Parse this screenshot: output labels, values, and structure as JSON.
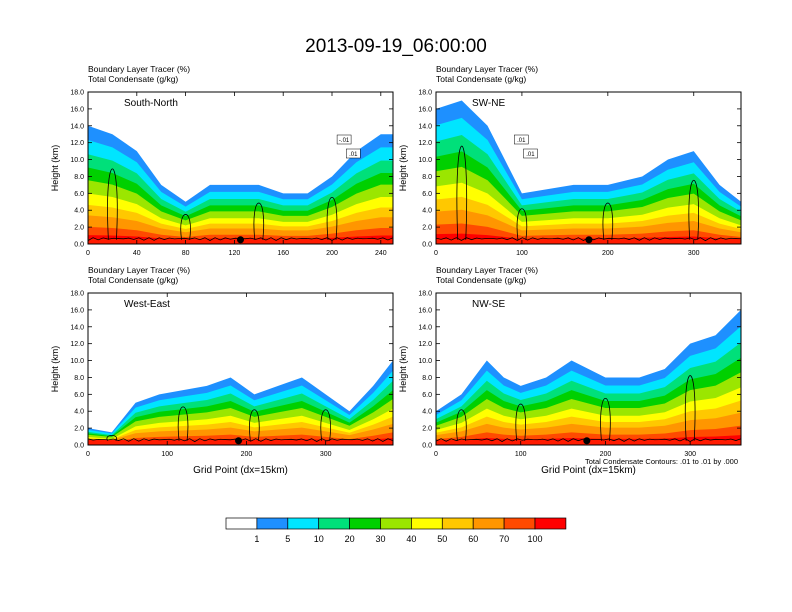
{
  "title": "2013-09-19_06:00:00",
  "panel_header_line1": "Boundary Layer Tracer   (%)",
  "panel_header_line2": "Total Condensate   (g/kg)",
  "contour_note": "Total Condensate Contours: .01 to .01 by .000",
  "colorbar": {
    "labels": [
      "1",
      "5",
      "10",
      "20",
      "30",
      "40",
      "50",
      "60",
      "70",
      "100"
    ],
    "colors": [
      "#ffffff",
      "#1e90ff",
      "#00e5ff",
      "#00e07a",
      "#00d000",
      "#9be600",
      "#ffff00",
      "#ffc800",
      "#ff9600",
      "#ff4a00",
      "#ff0000"
    ]
  },
  "chart_data": [
    {
      "type": "heatmap",
      "name": "South-North",
      "label": "South-North",
      "xlabel": "",
      "ylabel": "Height (km)",
      "xlim": [
        0,
        250
      ],
      "ylim": [
        0,
        18
      ],
      "xticks": [
        "0",
        "40",
        "80",
        "120",
        "160",
        "200",
        "240"
      ],
      "yticks": [
        "0.0",
        "2.0",
        "4.0",
        "6.0",
        "8.0",
        "10.0",
        "12.0",
        "14.0",
        "16.0",
        "18.0"
      ],
      "marker_x": 125,
      "contour_labels": [
        "-.01",
        ".01"
      ],
      "profile": {
        "x": [
          0,
          20,
          40,
          60,
          80,
          100,
          120,
          140,
          160,
          180,
          200,
          220,
          240,
          250
        ],
        "top_km": [
          14,
          13,
          11,
          7,
          5,
          7,
          7,
          7,
          6,
          6,
          8,
          11,
          13,
          13
        ]
      }
    },
    {
      "type": "heatmap",
      "name": "SW-NE",
      "label": "SW-NE",
      "xlabel": "",
      "ylabel": "Height (km)",
      "xlim": [
        0,
        355
      ],
      "ylim": [
        0,
        18
      ],
      "xticks": [
        "0",
        "100",
        "200",
        "300"
      ],
      "yticks": [
        "0.0",
        "2.0",
        "4.0",
        "6.0",
        "8.0",
        "10.0",
        "12.0",
        "14.0",
        "16.0",
        "18.0"
      ],
      "marker_x": 178,
      "contour_labels": [
        ".01",
        ".01"
      ],
      "profile": {
        "x": [
          0,
          30,
          60,
          80,
          100,
          130,
          160,
          200,
          240,
          270,
          300,
          330,
          355
        ],
        "top_km": [
          16,
          17,
          14,
          10,
          6,
          6.5,
          7,
          7,
          8,
          10,
          11,
          7,
          5
        ]
      }
    },
    {
      "type": "heatmap",
      "name": "West-East",
      "label": "West-East",
      "xlabel": "Grid Point (dx=15km)",
      "ylabel": "Height (km)",
      "xlim": [
        0,
        385
      ],
      "ylim": [
        0,
        18
      ],
      "xticks": [
        "0",
        "100",
        "200",
        "300"
      ],
      "yticks": [
        "0.0",
        "2.0",
        "4.0",
        "6.0",
        "8.0",
        "10.0",
        "12.0",
        "14.0",
        "16.0",
        "18.0"
      ],
      "marker_x": 190,
      "contour_labels": [],
      "profile": {
        "x": [
          0,
          30,
          60,
          90,
          120,
          150,
          180,
          210,
          240,
          270,
          300,
          330,
          360,
          385
        ],
        "top_km": [
          2,
          1.5,
          5,
          6,
          6.5,
          7,
          8,
          6,
          7,
          8,
          6,
          4,
          7,
          10
        ]
      }
    },
    {
      "type": "heatmap",
      "name": "NW-SE",
      "label": "NW-SE",
      "xlabel": "Grid Point (dx=15km)",
      "ylabel": "Height (km)",
      "xlim": [
        0,
        360
      ],
      "ylim": [
        0,
        18
      ],
      "xticks": [
        "0",
        "100",
        "200",
        "300"
      ],
      "yticks": [
        "0.0",
        "2.0",
        "4.0",
        "6.0",
        "8.0",
        "10.0",
        "12.0",
        "14.0",
        "16.0",
        "18.0"
      ],
      "marker_x": 178,
      "contour_labels": [],
      "profile": {
        "x": [
          0,
          30,
          60,
          80,
          100,
          130,
          160,
          200,
          240,
          270,
          300,
          330,
          360
        ],
        "top_km": [
          4,
          6,
          10,
          8,
          7,
          8,
          10,
          8,
          8,
          9,
          12,
          13,
          16
        ]
      }
    }
  ]
}
